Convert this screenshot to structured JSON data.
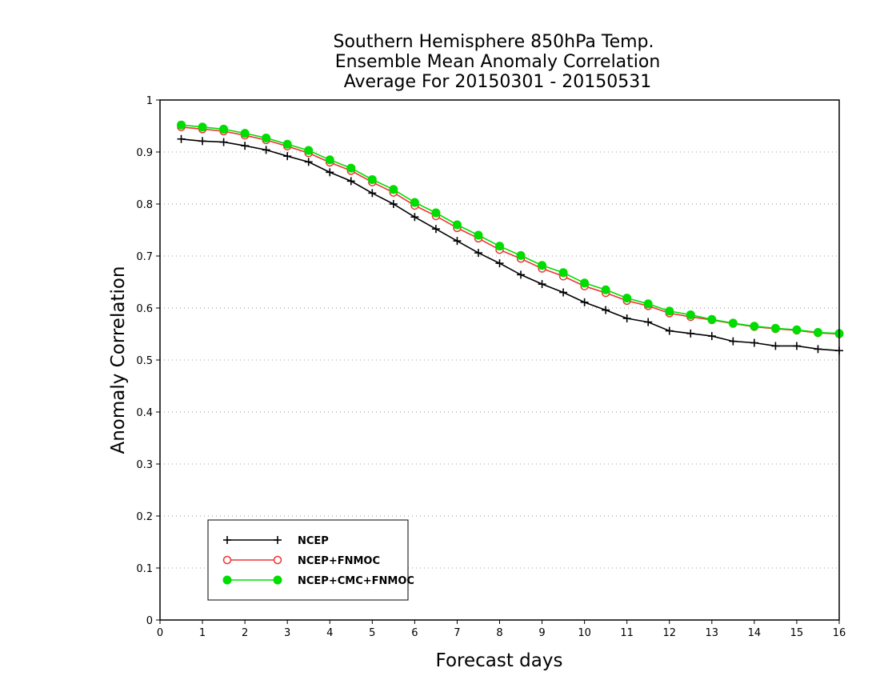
{
  "chart_data": {
    "type": "line",
    "title_lines": [
      "Southern Hemisphere 850hPa Temp.",
      "Ensemble Mean Anomaly Correlation",
      "Average For 20150301 - 20150531"
    ],
    "xlabel": "Forecast days",
    "ylabel": "Anomaly Correlation",
    "xlim": [
      0,
      16
    ],
    "ylim": [
      0,
      1
    ],
    "x_ticks": [
      "0",
      "1",
      "2",
      "3",
      "4",
      "5",
      "6",
      "7",
      "8",
      "9",
      "10",
      "11",
      "12",
      "13",
      "14",
      "15",
      "16"
    ],
    "y_ticks": [
      "0",
      "0.1",
      "0.2",
      "0.3",
      "0.4",
      "0.5",
      "0.6",
      "0.7",
      "0.8",
      "0.9",
      "1"
    ],
    "grid": "horizontal dotted",
    "legend_position": "bottom-left",
    "x": [
      0.5,
      1,
      1.5,
      2,
      2.5,
      3,
      3.5,
      4,
      4.5,
      5,
      5.5,
      6,
      6.5,
      7,
      7.5,
      8,
      8.5,
      9,
      9.5,
      10,
      10.5,
      11,
      11.5,
      12,
      12.5,
      13,
      13.5,
      14,
      14.5,
      15,
      15.5,
      16
    ],
    "series": [
      {
        "name": "NCEP",
        "color": "#000000",
        "marker": "plus",
        "values": [
          0.925,
          0.921,
          0.919,
          0.912,
          0.904,
          0.892,
          0.881,
          0.861,
          0.844,
          0.821,
          0.8,
          0.775,
          0.752,
          0.729,
          0.706,
          0.686,
          0.664,
          0.646,
          0.63,
          0.611,
          0.596,
          0.58,
          0.573,
          0.556,
          0.551,
          0.546,
          0.536,
          0.533,
          0.527,
          0.527,
          0.521,
          0.518
        ]
      },
      {
        "name": "NCEP+FNMOC",
        "color": "#ee3333",
        "marker": "open-circle",
        "values": [
          0.948,
          0.944,
          0.94,
          0.932,
          0.923,
          0.911,
          0.898,
          0.88,
          0.864,
          0.842,
          0.822,
          0.797,
          0.777,
          0.754,
          0.734,
          0.712,
          0.695,
          0.676,
          0.661,
          0.642,
          0.629,
          0.614,
          0.604,
          0.59,
          0.583,
          0.577,
          0.57,
          0.564,
          0.56,
          0.557,
          0.552,
          0.55
        ]
      },
      {
        "name": "NCEP+CMC+FNMOC",
        "color": "#00dd00",
        "marker": "filled-circle",
        "values": [
          0.952,
          0.948,
          0.944,
          0.936,
          0.927,
          0.915,
          0.903,
          0.885,
          0.869,
          0.847,
          0.828,
          0.803,
          0.783,
          0.76,
          0.74,
          0.719,
          0.701,
          0.682,
          0.668,
          0.648,
          0.635,
          0.619,
          0.608,
          0.594,
          0.587,
          0.578,
          0.571,
          0.565,
          0.561,
          0.558,
          0.553,
          0.551
        ]
      }
    ]
  }
}
